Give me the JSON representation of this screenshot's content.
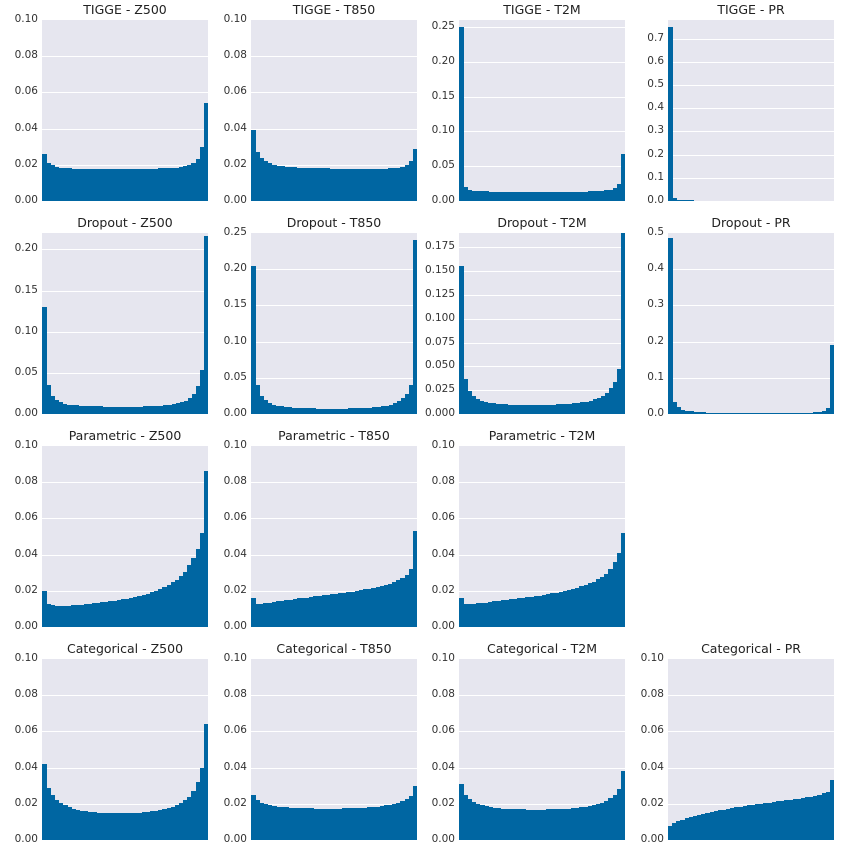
{
  "chart_data": [
    {
      "type": "bar",
      "title": "TIGGE - Z500",
      "ylim": [
        0,
        0.1
      ],
      "yticks": [
        "0.00",
        "0.02",
        "0.04",
        "0.06",
        "0.08",
        "0.10"
      ],
      "values": [
        0.026,
        0.021,
        0.02,
        0.019,
        0.0185,
        0.018,
        0.018,
        0.0178,
        0.0177,
        0.0177,
        0.0176,
        0.0176,
        0.0176,
        0.0176,
        0.0176,
        0.0176,
        0.0177,
        0.0177,
        0.0177,
        0.0178,
        0.0178,
        0.0178,
        0.0178,
        0.0178,
        0.0178,
        0.0178,
        0.0179,
        0.0179,
        0.018,
        0.0181,
        0.0182,
        0.0183,
        0.0185,
        0.0188,
        0.0193,
        0.02,
        0.021,
        0.023,
        0.03,
        0.054
      ]
    },
    {
      "type": "bar",
      "title": "TIGGE - T850",
      "ylim": [
        0,
        0.1
      ],
      "yticks": [
        "0.00",
        "0.02",
        "0.04",
        "0.06",
        "0.08",
        "0.10"
      ],
      "values": [
        0.039,
        0.027,
        0.024,
        0.022,
        0.021,
        0.02,
        0.0195,
        0.0192,
        0.019,
        0.0188,
        0.0186,
        0.0185,
        0.0184,
        0.0183,
        0.0182,
        0.0181,
        0.018,
        0.018,
        0.018,
        0.0179,
        0.0179,
        0.0179,
        0.0179,
        0.0179,
        0.0178,
        0.0178,
        0.0178,
        0.0178,
        0.0178,
        0.0178,
        0.0178,
        0.0178,
        0.0179,
        0.018,
        0.0182,
        0.0185,
        0.019,
        0.02,
        0.022,
        0.029
      ]
    },
    {
      "type": "bar",
      "title": "TIGGE - T2M",
      "ylim": [
        0,
        0.26
      ],
      "yticks": [
        "0.00",
        "0.05",
        "0.10",
        "0.15",
        "0.20",
        "0.25"
      ],
      "values": [
        0.25,
        0.02,
        0.016,
        0.015,
        0.0145,
        0.014,
        0.0138,
        0.0136,
        0.0135,
        0.0134,
        0.0134,
        0.0133,
        0.0133,
        0.0133,
        0.0133,
        0.0133,
        0.0133,
        0.0133,
        0.0133,
        0.0133,
        0.0133,
        0.0133,
        0.0133,
        0.0133,
        0.0133,
        0.0133,
        0.0133,
        0.0134,
        0.0134,
        0.0135,
        0.0136,
        0.0138,
        0.014,
        0.0143,
        0.0148,
        0.0155,
        0.0165,
        0.018,
        0.024,
        0.067
      ]
    },
    {
      "type": "bar",
      "title": "TIGGE - PR",
      "ylim": [
        0,
        0.78
      ],
      "yticks": [
        "0.0",
        "0.1",
        "0.2",
        "0.3",
        "0.4",
        "0.5",
        "0.6",
        "0.7"
      ],
      "values": [
        0.75,
        0.015,
        0.006,
        0.004,
        0.003,
        0.003,
        0.002,
        0.002,
        0.002,
        0.002,
        0.002,
        0.002,
        0.002,
        0.002,
        0.002,
        0.002,
        0.002,
        0.002,
        0.002,
        0.002,
        0.002,
        0.002,
        0.002,
        0.002,
        0.002,
        0.002,
        0.002,
        0.002,
        0.002,
        0.002,
        0.002,
        0.002,
        0.002,
        0.002,
        0.002,
        0.002,
        0.002,
        0.002,
        0.002,
        0.002
      ]
    },
    {
      "type": "bar",
      "title": "Dropout - Z500",
      "ylim": [
        0,
        0.22
      ],
      "yticks": [
        "0.00",
        "0.05",
        "0.10",
        "0.15",
        "0.20"
      ],
      "values": [
        0.13,
        0.035,
        0.022,
        0.017,
        0.014,
        0.0125,
        0.0115,
        0.011,
        0.0105,
        0.01,
        0.0098,
        0.0096,
        0.0094,
        0.0093,
        0.0092,
        0.0091,
        0.009,
        0.009,
        0.009,
        0.009,
        0.009,
        0.009,
        0.009,
        0.009,
        0.0091,
        0.0092,
        0.0094,
        0.0096,
        0.0098,
        0.01,
        0.0105,
        0.011,
        0.012,
        0.013,
        0.0145,
        0.016,
        0.019,
        0.024,
        0.034,
        0.054,
        0.216
      ]
    },
    {
      "type": "bar",
      "title": "Dropout - T850",
      "ylim": [
        0,
        0.25
      ],
      "yticks": [
        "0.00",
        "0.05",
        "0.10",
        "0.15",
        "0.20",
        "0.25"
      ],
      "values": [
        0.205,
        0.04,
        0.025,
        0.019,
        0.015,
        0.013,
        0.0115,
        0.0105,
        0.0098,
        0.0092,
        0.0088,
        0.0085,
        0.0082,
        0.008,
        0.0078,
        0.0077,
        0.0076,
        0.0075,
        0.0075,
        0.0075,
        0.0075,
        0.0075,
        0.0075,
        0.0076,
        0.0077,
        0.0078,
        0.008,
        0.0082,
        0.0085,
        0.0088,
        0.0092,
        0.0098,
        0.0105,
        0.0115,
        0.013,
        0.015,
        0.018,
        0.022,
        0.028,
        0.04,
        0.24
      ]
    },
    {
      "type": "bar",
      "title": "Dropout - T2M",
      "ylim": [
        0,
        0.19
      ],
      "yticks": [
        "0.000",
        "0.025",
        "0.050",
        "0.075",
        "0.100",
        "0.125",
        "0.150",
        "0.175"
      ],
      "values": [
        0.155,
        0.037,
        0.024,
        0.019,
        0.016,
        0.014,
        0.0128,
        0.012,
        0.0113,
        0.0108,
        0.0104,
        0.0101,
        0.0099,
        0.0097,
        0.0096,
        0.0095,
        0.0095,
        0.0095,
        0.0095,
        0.0095,
        0.0095,
        0.0096,
        0.0097,
        0.0098,
        0.01,
        0.0102,
        0.0105,
        0.0108,
        0.0112,
        0.0117,
        0.0123,
        0.013,
        0.014,
        0.0153,
        0.017,
        0.019,
        0.022,
        0.027,
        0.034,
        0.047,
        0.19
      ]
    },
    {
      "type": "bar",
      "title": "Dropout - PR",
      "ylim": [
        0,
        0.5
      ],
      "yticks": [
        "0.0",
        "0.1",
        "0.2",
        "0.3",
        "0.4",
        "0.5"
      ],
      "values": [
        0.485,
        0.033,
        0.018,
        0.012,
        0.009,
        0.007,
        0.006,
        0.005,
        0.0045,
        0.004,
        0.0035,
        0.003,
        0.003,
        0.003,
        0.0025,
        0.0025,
        0.0025,
        0.0025,
        0.0025,
        0.0025,
        0.0025,
        0.0025,
        0.0025,
        0.0025,
        0.0025,
        0.0025,
        0.0025,
        0.0025,
        0.0025,
        0.0025,
        0.003,
        0.003,
        0.003,
        0.0035,
        0.004,
        0.005,
        0.006,
        0.009,
        0.016,
        0.19
      ]
    },
    {
      "type": "bar",
      "title": "Parametric - Z500",
      "ylim": [
        0,
        0.1
      ],
      "yticks": [
        "0.00",
        "0.02",
        "0.04",
        "0.06",
        "0.08",
        "0.10"
      ],
      "values": [
        0.02,
        0.0125,
        0.012,
        0.0118,
        0.0117,
        0.0117,
        0.0118,
        0.012,
        0.0122,
        0.0124,
        0.0126,
        0.0128,
        0.013,
        0.0133,
        0.0136,
        0.0139,
        0.0142,
        0.0145,
        0.0149,
        0.0153,
        0.0157,
        0.0162,
        0.0167,
        0.0172,
        0.0178,
        0.0185,
        0.0192,
        0.02,
        0.021,
        0.022,
        0.0232,
        0.0246,
        0.026,
        0.028,
        0.0305,
        0.034,
        0.038,
        0.043,
        0.052,
        0.086
      ]
    },
    {
      "type": "bar",
      "title": "Parametric - T850",
      "ylim": [
        0,
        0.1
      ],
      "yticks": [
        "0.00",
        "0.02",
        "0.04",
        "0.06",
        "0.08",
        "0.10"
      ],
      "values": [
        0.016,
        0.0128,
        0.0128,
        0.013,
        0.0134,
        0.0138,
        0.0142,
        0.0146,
        0.0149,
        0.0152,
        0.0155,
        0.0158,
        0.016,
        0.0163,
        0.0166,
        0.0169,
        0.0172,
        0.0175,
        0.0178,
        0.0181,
        0.0184,
        0.0187,
        0.019,
        0.0193,
        0.0196,
        0.02,
        0.0204,
        0.0208,
        0.0212,
        0.0217,
        0.0222,
        0.0227,
        0.0233,
        0.024,
        0.0248,
        0.0258,
        0.027,
        0.0285,
        0.032,
        0.053
      ]
    },
    {
      "type": "bar",
      "title": "Parametric - T2M",
      "ylim": [
        0,
        0.1
      ],
      "yticks": [
        "0.00",
        "0.02",
        "0.04",
        "0.06",
        "0.08",
        "0.10"
      ],
      "values": [
        0.016,
        0.0128,
        0.0127,
        0.0128,
        0.013,
        0.0132,
        0.0135,
        0.0138,
        0.0141,
        0.0144,
        0.0147,
        0.015,
        0.0153,
        0.0156,
        0.0159,
        0.0162,
        0.0165,
        0.0168,
        0.0171,
        0.0174,
        0.0178,
        0.0182,
        0.0186,
        0.019,
        0.0195,
        0.02,
        0.0205,
        0.0211,
        0.0217,
        0.0224,
        0.0232,
        0.0241,
        0.0251,
        0.0263,
        0.0277,
        0.0295,
        0.032,
        0.036,
        0.041,
        0.052
      ]
    },
    null,
    {
      "type": "bar",
      "title": "Categorical - Z500",
      "ylim": [
        0,
        0.1
      ],
      "yticks": [
        "0.00",
        "0.02",
        "0.04",
        "0.06",
        "0.08",
        "0.10"
      ],
      "values": [
        0.042,
        0.029,
        0.025,
        0.022,
        0.0205,
        0.0192,
        0.0182,
        0.0174,
        0.0168,
        0.0163,
        0.0159,
        0.0156,
        0.0153,
        0.0151,
        0.015,
        0.0149,
        0.0148,
        0.0148,
        0.0148,
        0.0148,
        0.0148,
        0.0149,
        0.015,
        0.0151,
        0.0153,
        0.0155,
        0.0158,
        0.0161,
        0.0165,
        0.017,
        0.0176,
        0.0183,
        0.0192,
        0.0204,
        0.022,
        0.024,
        0.027,
        0.032,
        0.04,
        0.064
      ]
    },
    {
      "type": "bar",
      "title": "Categorical - T850",
      "ylim": [
        0,
        0.1
      ],
      "yticks": [
        "0.00",
        "0.02",
        "0.04",
        "0.06",
        "0.08",
        "0.10"
      ],
      "values": [
        0.025,
        0.022,
        0.0205,
        0.0197,
        0.0192,
        0.0188,
        0.0185,
        0.0183,
        0.0181,
        0.0179,
        0.0178,
        0.0177,
        0.0176,
        0.0175,
        0.0175,
        0.0174,
        0.0174,
        0.0174,
        0.0174,
        0.0174,
        0.0174,
        0.0174,
        0.0175,
        0.0175,
        0.0176,
        0.0177,
        0.0178,
        0.0179,
        0.0181,
        0.0183,
        0.0185,
        0.0188,
        0.0191,
        0.0195,
        0.02,
        0.0207,
        0.0215,
        0.0227,
        0.0245,
        0.03
      ]
    },
    {
      "type": "bar",
      "title": "Categorical - T2M",
      "ylim": [
        0,
        0.1
      ],
      "yticks": [
        "0.00",
        "0.02",
        "0.04",
        "0.06",
        "0.08",
        "0.10"
      ],
      "values": [
        0.031,
        0.025,
        0.0225,
        0.021,
        0.02,
        0.0193,
        0.0187,
        0.0182,
        0.0179,
        0.0176,
        0.0174,
        0.0172,
        0.0171,
        0.017,
        0.0169,
        0.0169,
        0.0168,
        0.0168,
        0.0168,
        0.0168,
        0.0168,
        0.0169,
        0.0169,
        0.017,
        0.0171,
        0.0172,
        0.0174,
        0.0176,
        0.0178,
        0.0181,
        0.0184,
        0.0188,
        0.0193,
        0.0199,
        0.0207,
        0.0217,
        0.023,
        0.025,
        0.028,
        0.038
      ]
    },
    {
      "type": "bar",
      "title": "Categorical - PR",
      "ylim": [
        0,
        0.1
      ],
      "yticks": [
        "0.00",
        "0.02",
        "0.04",
        "0.06",
        "0.08",
        "0.10"
      ],
      "values": [
        0.008,
        0.0095,
        0.0105,
        0.0113,
        0.012,
        0.0127,
        0.0133,
        0.0139,
        0.0144,
        0.0149,
        0.0154,
        0.0159,
        0.0164,
        0.0168,
        0.0172,
        0.0176,
        0.018,
        0.0184,
        0.0188,
        0.0191,
        0.0195,
        0.0198,
        0.0201,
        0.0204,
        0.0207,
        0.021,
        0.0213,
        0.0216,
        0.0219,
        0.0222,
        0.0225,
        0.0228,
        0.0231,
        0.0235,
        0.0239,
        0.0244,
        0.025,
        0.0258,
        0.0268,
        0.033
      ]
    }
  ]
}
